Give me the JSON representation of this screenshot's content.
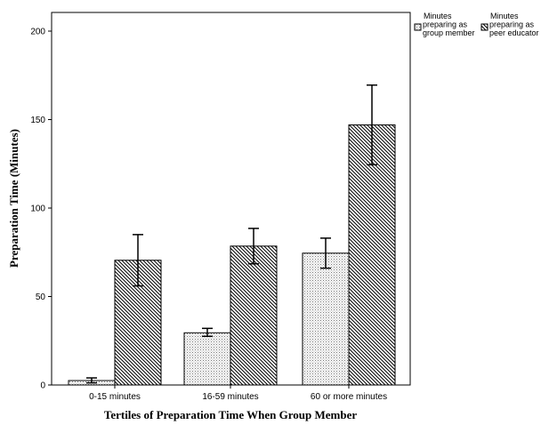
{
  "chart_data": {
    "type": "bar",
    "categories": [
      "0-15 minutes",
      "16-59 minutes",
      "60 or more minutes"
    ],
    "series": [
      {
        "name": "Minutes preparing as group member",
        "name_lines": [
          "Minutes",
          "preparing as",
          "group member"
        ],
        "values": [
          2.5,
          29.5,
          74.5
        ],
        "error_low": [
          1.2,
          27.5,
          66
        ],
        "error_high": [
          4,
          32,
          83
        ],
        "pattern": "dotted"
      },
      {
        "name": "Minutes preparing as peer educator",
        "name_lines": [
          "Minutes",
          "preparing as",
          "peer educator"
        ],
        "values": [
          70.5,
          78.5,
          147
        ],
        "error_low": [
          56,
          68.5,
          124.5
        ],
        "error_high": [
          85,
          88.5,
          169.5
        ],
        "pattern": "diagonal-hatch"
      }
    ],
    "xlabel": "Tertiles of Preparation Time When Group Member",
    "ylabel": "Preparation Time (Minutes)",
    "ylim": [
      0,
      210
    ],
    "yticks": [
      0,
      50,
      100,
      150,
      200
    ],
    "grid": false,
    "legend": "top-right",
    "error_bars": true
  }
}
